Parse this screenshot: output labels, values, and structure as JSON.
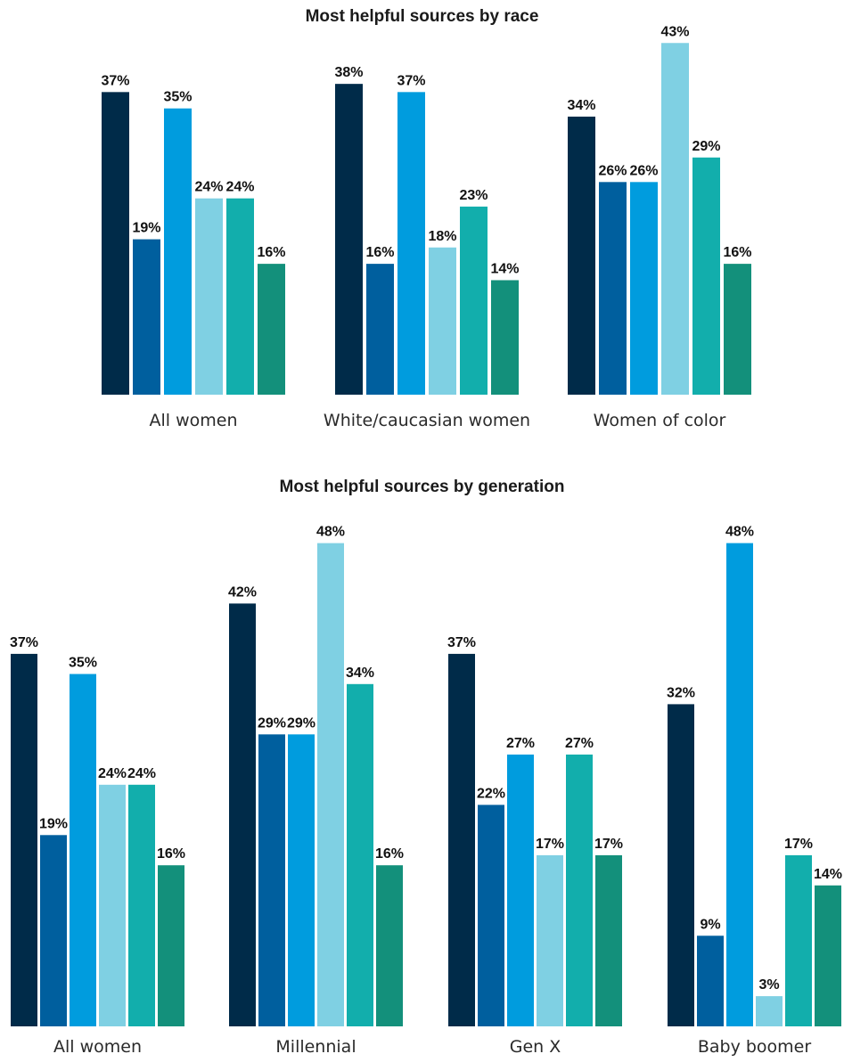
{
  "colors": [
    "#002b49",
    "#005f9e",
    "#009cde",
    "#7fd0e3",
    "#12aeac",
    "#13907b"
  ],
  "chart_data": [
    {
      "type": "bar",
      "title": "Most helpful sources by race",
      "xlabel": "",
      "ylabel": "",
      "categories": [
        "All women",
        "White/caucasian women",
        "Women of color"
      ],
      "values": [
        [
          37,
          19,
          35,
          24,
          24,
          16
        ],
        [
          38,
          16,
          37,
          18,
          23,
          14
        ],
        [
          34,
          26,
          26,
          43,
          29,
          16
        ]
      ],
      "labels": [
        [
          "37%",
          "19%",
          "35%",
          "24%",
          "24%",
          "16%"
        ],
        [
          "38%",
          "16%",
          "37%",
          "18%",
          "23%",
          "14%"
        ],
        [
          "34%",
          "26%",
          "26%",
          "43%",
          "29%",
          "16%"
        ]
      ],
      "grid": false,
      "legend": "none"
    },
    {
      "type": "bar",
      "title": "Most helpful sources by generation",
      "xlabel": "",
      "ylabel": "",
      "categories": [
        "All women",
        "Millennial",
        "Gen X",
        "Baby boomer"
      ],
      "values": [
        [
          37,
          19,
          35,
          24,
          24,
          16
        ],
        [
          42,
          29,
          29,
          48,
          34,
          16
        ],
        [
          37,
          22,
          27,
          17,
          27,
          17
        ],
        [
          32,
          9,
          48,
          3,
          17,
          14
        ]
      ],
      "labels": [
        [
          "37%",
          "19%",
          "35%",
          "24%",
          "24%",
          "16%"
        ],
        [
          "42%",
          "29%",
          "29%",
          "48%",
          "34%",
          "16%"
        ],
        [
          "37%",
          "22%",
          "27%",
          "17%",
          "27%",
          "17%"
        ],
        [
          "32%",
          "9%",
          "48%",
          "3%",
          "17%",
          "14%"
        ]
      ],
      "grid": false,
      "legend": "none"
    }
  ]
}
